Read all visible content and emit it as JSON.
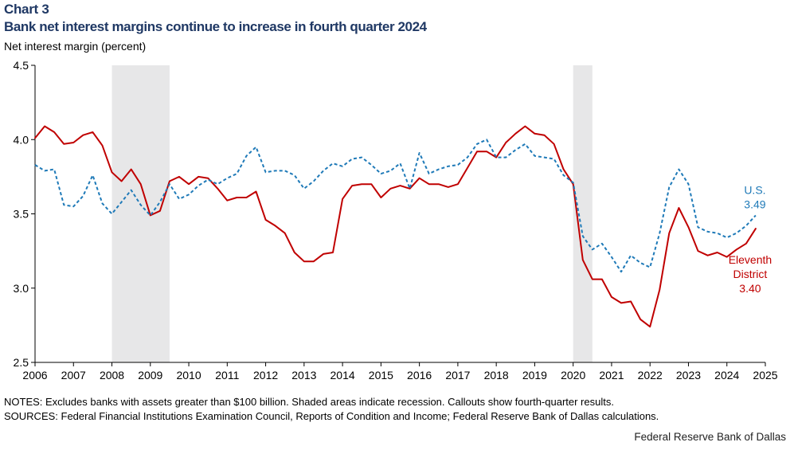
{
  "chart_label": "Chart 3",
  "title": "Bank net interest margins continue to increase in fourth quarter 2024",
  "y_axis_label": "Net interest margin (percent)",
  "notes": "NOTES: Excludes banks with assets greater than $100 billion.  Shaded areas indicate recession. Callouts show fourth-quarter results.",
  "sources": "SOURCES: Federal Financial Institutions Examination Council, Reports of Condition and Income; Federal Reserve Bank of Dallas calculations.",
  "credit": "Federal Reserve Bank of Dallas",
  "colors": {
    "us": "#1f7ab8",
    "district": "#c00000",
    "recession": "#e7e7e8",
    "axis": "#000000"
  },
  "chart_data": {
    "type": "line",
    "title": "Bank net interest margins continue to increase in fourth quarter 2024",
    "ylabel": "Net interest margin (percent)",
    "xlabel": "",
    "xlim": [
      2006,
      2025
    ],
    "ylim": [
      2.5,
      4.5
    ],
    "yticks": [
      2.5,
      3.0,
      3.5,
      4.0,
      4.5
    ],
    "ytick_labels": [
      "2.5",
      "3.0",
      "3.5",
      "4.0",
      "4.5"
    ],
    "xticks": [
      2006,
      2007,
      2008,
      2009,
      2010,
      2011,
      2012,
      2013,
      2014,
      2015,
      2016,
      2017,
      2018,
      2019,
      2020,
      2021,
      2022,
      2023,
      2024,
      2025
    ],
    "recessions": [
      [
        2008.0,
        2009.5
      ],
      [
        2020.0,
        2020.5
      ]
    ],
    "x": [
      2006.0,
      2006.25,
      2006.5,
      2006.75,
      2007.0,
      2007.25,
      2007.5,
      2007.75,
      2008.0,
      2008.25,
      2008.5,
      2008.75,
      2009.0,
      2009.25,
      2009.5,
      2009.75,
      2010.0,
      2010.25,
      2010.5,
      2010.75,
      2011.0,
      2011.25,
      2011.5,
      2011.75,
      2012.0,
      2012.25,
      2012.5,
      2012.75,
      2013.0,
      2013.25,
      2013.5,
      2013.75,
      2014.0,
      2014.25,
      2014.5,
      2014.75,
      2015.0,
      2015.25,
      2015.5,
      2015.75,
      2016.0,
      2016.25,
      2016.5,
      2016.75,
      2017.0,
      2017.25,
      2017.5,
      2017.75,
      2018.0,
      2018.25,
      2018.5,
      2018.75,
      2019.0,
      2019.25,
      2019.5,
      2019.75,
      2020.0,
      2020.25,
      2020.5,
      2020.75,
      2021.0,
      2021.25,
      2021.5,
      2021.75,
      2022.0,
      2022.25,
      2022.5,
      2022.75,
      2023.0,
      2023.25,
      2023.5,
      2023.75,
      2024.0,
      2024.25,
      2024.5,
      2024.75
    ],
    "series": [
      {
        "name": "U.S.",
        "style": "dashed",
        "values": [
          3.83,
          3.79,
          3.8,
          3.56,
          3.55,
          3.62,
          3.76,
          3.57,
          3.5,
          3.58,
          3.66,
          3.56,
          3.49,
          3.58,
          3.7,
          3.6,
          3.63,
          3.69,
          3.73,
          3.7,
          3.74,
          3.77,
          3.89,
          3.95,
          3.78,
          3.79,
          3.79,
          3.76,
          3.67,
          3.72,
          3.79,
          3.84,
          3.82,
          3.87,
          3.88,
          3.83,
          3.77,
          3.79,
          3.84,
          3.67,
          3.91,
          3.77,
          3.8,
          3.82,
          3.83,
          3.88,
          3.97,
          4.0,
          3.88,
          3.88,
          3.93,
          3.97,
          3.89,
          3.88,
          3.87,
          3.76,
          3.71,
          3.35,
          3.26,
          3.3,
          3.21,
          3.11,
          3.22,
          3.17,
          3.14,
          3.37,
          3.68,
          3.8,
          3.7,
          3.41,
          3.38,
          3.37,
          3.34,
          3.37,
          3.42,
          3.49
        ]
      },
      {
        "name": "Eleventh District",
        "style": "solid",
        "values": [
          4.01,
          4.09,
          4.05,
          3.97,
          3.98,
          4.03,
          4.05,
          3.96,
          3.78,
          3.72,
          3.8,
          3.7,
          3.49,
          3.52,
          3.72,
          3.75,
          3.7,
          3.75,
          3.74,
          3.67,
          3.59,
          3.61,
          3.61,
          3.65,
          3.46,
          3.42,
          3.37,
          3.24,
          3.18,
          3.18,
          3.23,
          3.24,
          3.6,
          3.69,
          3.7,
          3.7,
          3.61,
          3.67,
          3.69,
          3.67,
          3.74,
          3.7,
          3.7,
          3.68,
          3.7,
          3.81,
          3.92,
          3.92,
          3.88,
          3.98,
          4.04,
          4.09,
          4.04,
          4.03,
          3.97,
          3.8,
          3.7,
          3.19,
          3.06,
          3.06,
          2.94,
          2.9,
          2.91,
          2.79,
          2.74,
          2.99,
          3.37,
          3.54,
          3.41,
          3.25,
          3.22,
          3.24,
          3.21,
          3.26,
          3.3,
          3.4
        ]
      }
    ],
    "annotations": [
      {
        "series": "U.S.",
        "lines": [
          "U.S.",
          "3.49"
        ]
      },
      {
        "series": "Eleventh District",
        "lines": [
          "Eleventh",
          "District",
          "3.40"
        ]
      }
    ]
  }
}
